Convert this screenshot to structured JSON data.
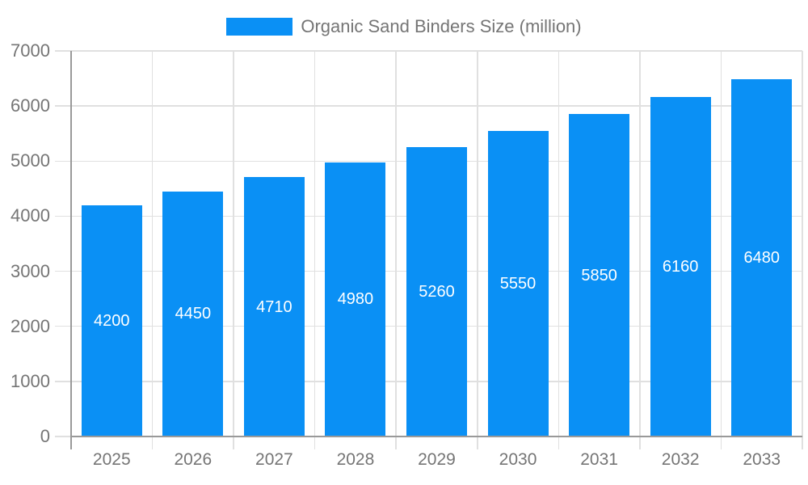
{
  "legend": {
    "label": "Organic Sand Binders Size (million)"
  },
  "chart_data": {
    "type": "bar",
    "title": "Organic Sand Binders Size (million)",
    "categories": [
      "2025",
      "2026",
      "2027",
      "2028",
      "2029",
      "2030",
      "2031",
      "2032",
      "2033"
    ],
    "series": [
      {
        "name": "Organic Sand Binders Size (million)",
        "values": [
          4200,
          4450,
          4710,
          4980,
          5260,
          5550,
          5850,
          6160,
          6480
        ]
      }
    ],
    "xlabel": "",
    "ylabel": "",
    "ylim": [
      0,
      7000
    ],
    "ytick_step": 1000,
    "grid": true,
    "legend_position": "top-center",
    "value_label_position": "inside-center"
  },
  "colors": {
    "bar": "#0a90f5",
    "grid": "#e0e0e0",
    "axis": "#999999",
    "tick_text": "#757575",
    "value_label": "#ffffff",
    "background": "#ffffff"
  }
}
